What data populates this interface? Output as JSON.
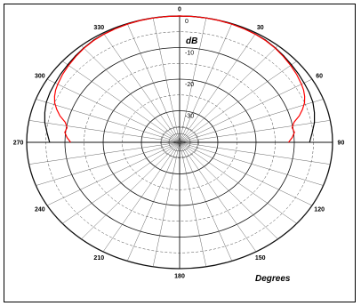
{
  "chart_data": {
    "type": "polar-line",
    "radial_unit_label": "dB",
    "angular_unit_label": "Degrees",
    "angle_tick_labels": [
      "0",
      "30",
      "60",
      "90",
      "120",
      "150",
      "180",
      "210",
      "240",
      "270",
      "300",
      "330"
    ],
    "angle_tick_values": [
      0,
      30,
      60,
      90,
      120,
      150,
      180,
      210,
      240,
      270,
      300,
      330
    ],
    "radial_tick_labels": [
      "0",
      "-10",
      "-20",
      "-30"
    ],
    "radial_tick_values": [
      0,
      -10,
      -20,
      -30
    ],
    "radial_range_db": [
      -40,
      0
    ],
    "series": [
      {
        "color": "#000000",
        "points_deg_db": [
          [
            -90,
            -6.0
          ],
          [
            -85,
            -5.2
          ],
          [
            -80,
            -4.2
          ],
          [
            -75,
            -3.5
          ],
          [
            -70,
            -2.9
          ],
          [
            -65,
            -2.6
          ],
          [
            -60,
            -2.4
          ],
          [
            -55,
            -2.1
          ],
          [
            -50,
            -1.8
          ],
          [
            -45,
            -1.4
          ],
          [
            -40,
            -1.0
          ],
          [
            -35,
            -0.6
          ],
          [
            -30,
            -0.4
          ],
          [
            -25,
            -0.25
          ],
          [
            -20,
            -0.15
          ],
          [
            -15,
            -0.05
          ],
          [
            -10,
            0
          ],
          [
            -5,
            0
          ],
          [
            0,
            0
          ],
          [
            5,
            0
          ],
          [
            10,
            0
          ],
          [
            15,
            -0.05
          ],
          [
            20,
            -0.15
          ],
          [
            25,
            -0.25
          ],
          [
            30,
            -0.4
          ],
          [
            35,
            -0.6
          ],
          [
            40,
            -1.0
          ],
          [
            45,
            -1.4
          ],
          [
            50,
            -1.8
          ],
          [
            55,
            -2.1
          ],
          [
            60,
            -2.4
          ],
          [
            65,
            -2.6
          ],
          [
            70,
            -2.9
          ],
          [
            75,
            -3.5
          ],
          [
            80,
            -4.2
          ],
          [
            85,
            -5.2
          ],
          [
            90,
            -6.0
          ]
        ]
      },
      {
        "color": "#ff0000",
        "points_deg_db": [
          [
            -90,
            -11.5
          ],
          [
            -87,
            -10.5
          ],
          [
            -84,
            -9.8
          ],
          [
            -81,
            -10.2
          ],
          [
            -78,
            -9.4
          ],
          [
            -75,
            -7.6
          ],
          [
            -72,
            -6.2
          ],
          [
            -69,
            -5.0
          ],
          [
            -66,
            -4.2
          ],
          [
            -63,
            -3.6
          ],
          [
            -60,
            -3.2
          ],
          [
            -55,
            -2.6
          ],
          [
            -50,
            -2.1
          ],
          [
            -45,
            -1.6
          ],
          [
            -40,
            -1.1
          ],
          [
            -35,
            -0.7
          ],
          [
            -30,
            -0.45
          ],
          [
            -25,
            -0.3
          ],
          [
            -20,
            -0.15
          ],
          [
            -15,
            -0.05
          ],
          [
            -10,
            0
          ],
          [
            -5,
            0
          ],
          [
            0,
            0
          ],
          [
            5,
            0
          ],
          [
            10,
            0
          ],
          [
            15,
            -0.05
          ],
          [
            20,
            -0.15
          ],
          [
            25,
            -0.3
          ],
          [
            30,
            -0.45
          ],
          [
            35,
            -0.7
          ],
          [
            40,
            -1.1
          ],
          [
            45,
            -1.6
          ],
          [
            50,
            -2.1
          ],
          [
            55,
            -2.6
          ],
          [
            60,
            -3.2
          ],
          [
            63,
            -3.6
          ],
          [
            66,
            -4.2
          ],
          [
            69,
            -5.0
          ],
          [
            72,
            -6.2
          ],
          [
            75,
            -7.6
          ],
          [
            78,
            -9.4
          ],
          [
            81,
            -10.2
          ],
          [
            84,
            -9.8
          ],
          [
            87,
            -10.5
          ],
          [
            90,
            -11.5
          ]
        ]
      }
    ],
    "grid": true,
    "legend": "none"
  }
}
